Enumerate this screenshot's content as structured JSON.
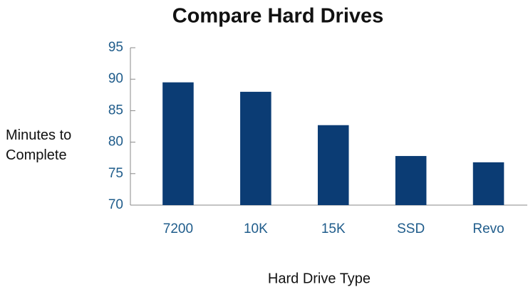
{
  "chart_data": {
    "type": "bar",
    "title": "Compare Hard Drives",
    "y_label": "Minutes to Complete",
    "x_label": "Hard Drive Type",
    "categories": [
      "7200",
      "10K",
      "15K",
      "SSD",
      "Revo"
    ],
    "values": [
      89.5,
      88,
      82.7,
      77.8,
      76.8
    ],
    "color": "#0b3c74",
    "ylim": [
      70,
      95
    ],
    "yticks": [
      70,
      75,
      80,
      85,
      90,
      95
    ],
    "grid": false
  }
}
